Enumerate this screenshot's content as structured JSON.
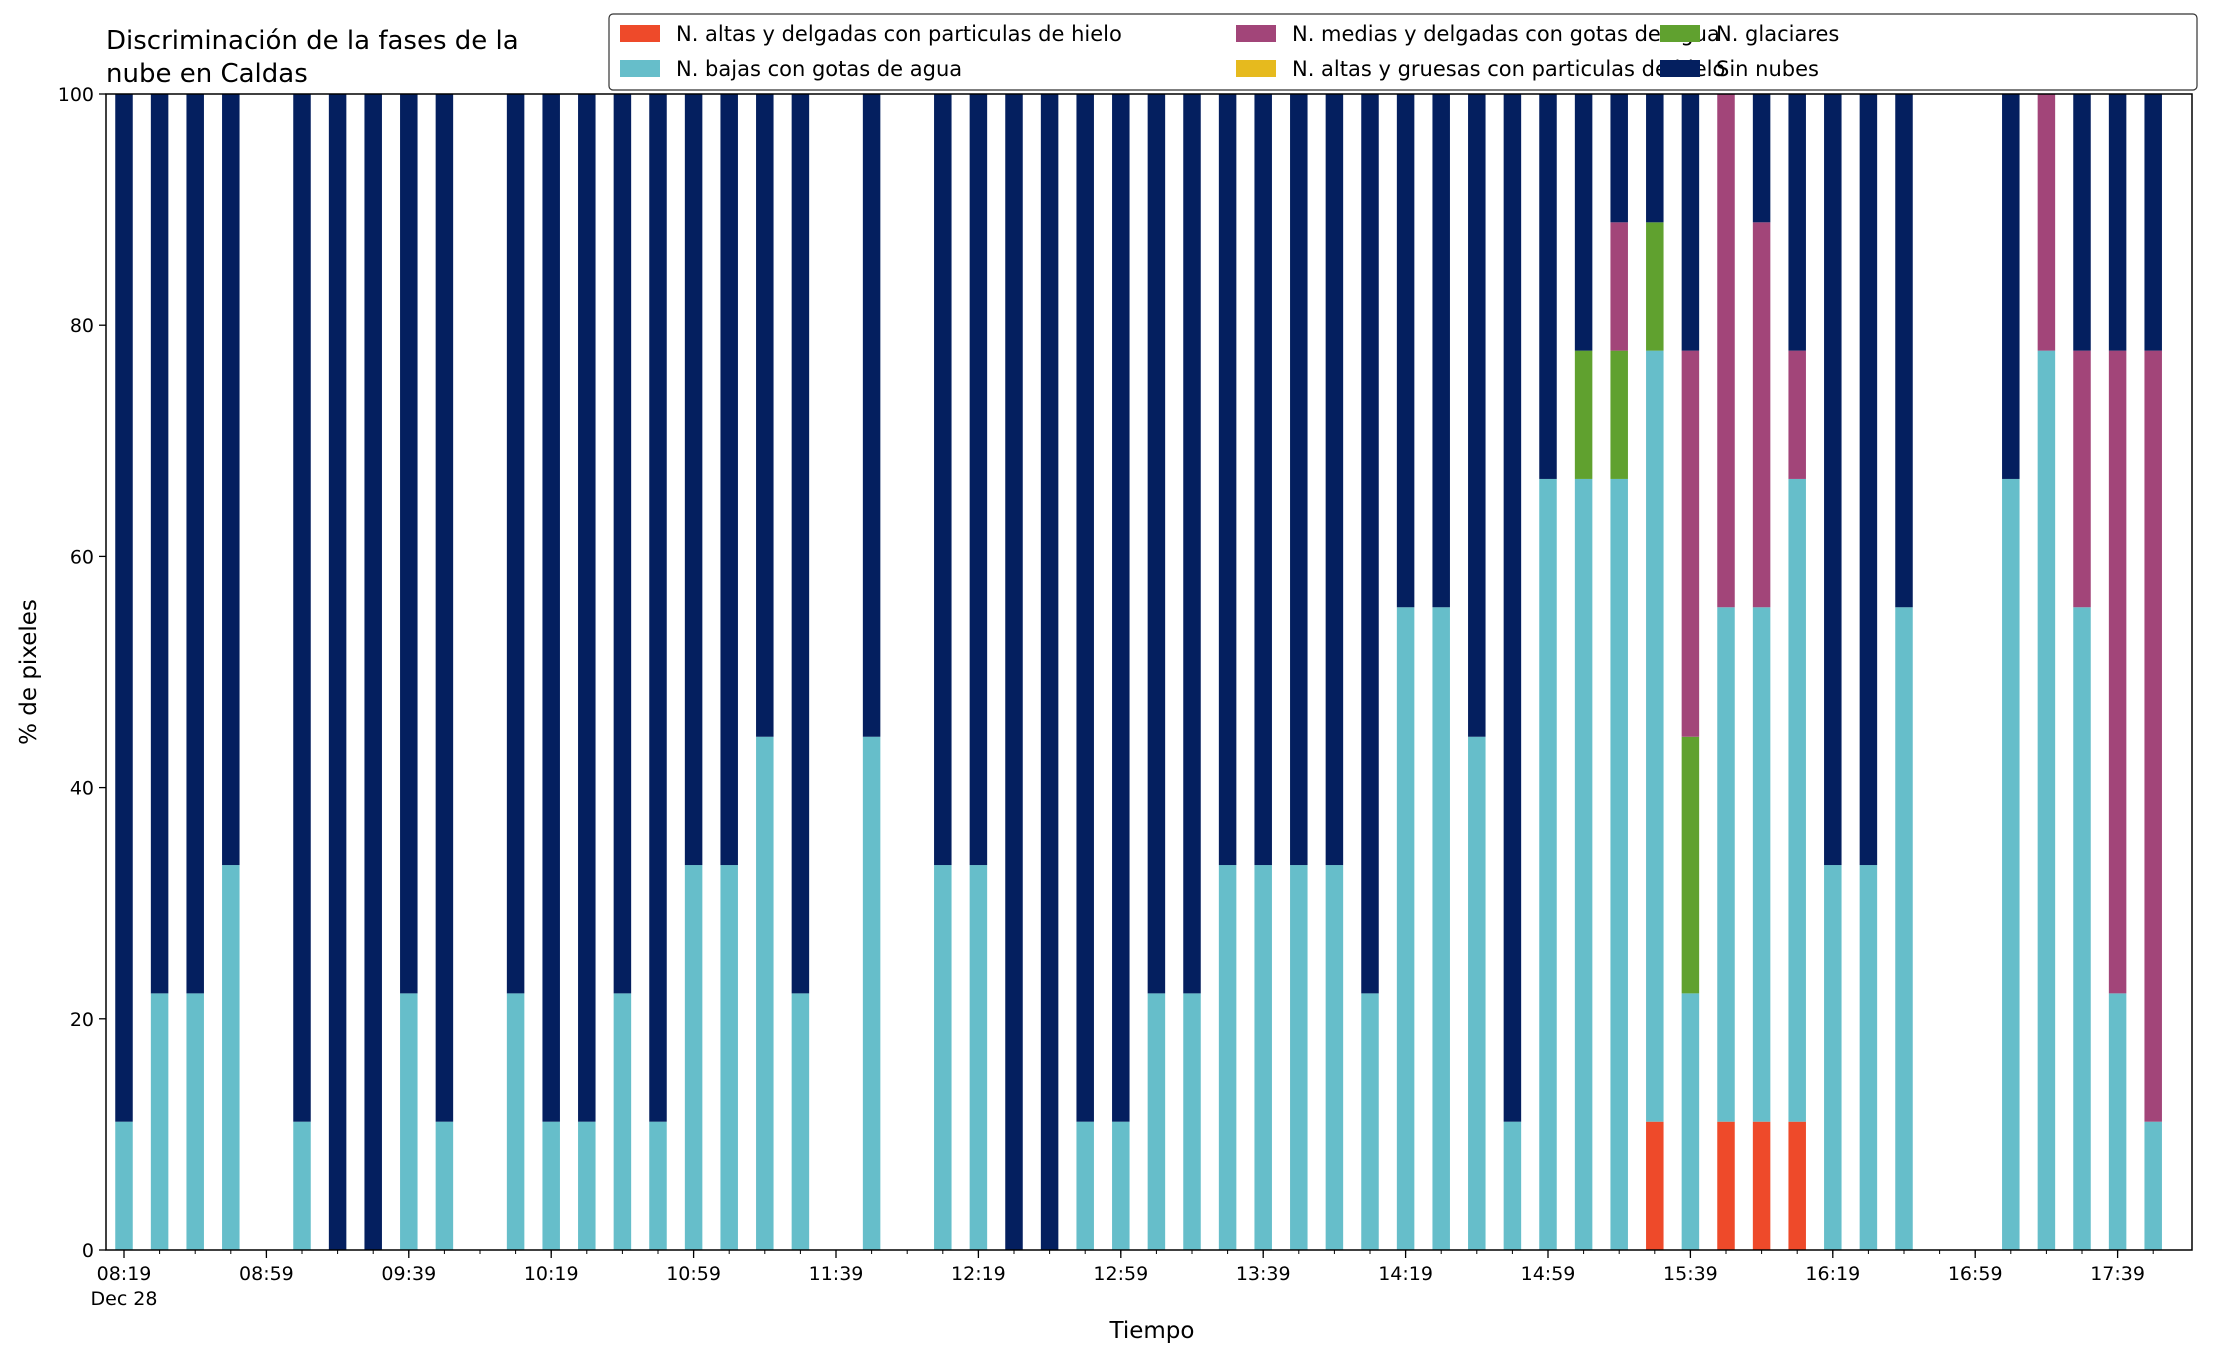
{
  "chart_data": {
    "type": "bar",
    "stacked": true,
    "title": "Discriminación de la fases de la\nnube en Caldas",
    "xlabel": "Tiempo",
    "ylabel": "% de pixeles",
    "ylim": [
      0,
      100
    ],
    "yticks": [
      "0",
      "20",
      "40",
      "60",
      "80",
      "100"
    ],
    "xticks": [
      "08:19",
      "08:59",
      "09:39",
      "10:19",
      "10:59",
      "11:39",
      "12:19",
      "12:59",
      "13:39",
      "14:19",
      "14:59",
      "15:39",
      "16:19",
      "16:59",
      "17:39"
    ],
    "xdate": "Dec 28",
    "legend_position": "top-right",
    "legend": [
      {
        "name": "N. altas y delgadas con particulas de hielo",
        "color": "#EE4A2A"
      },
      {
        "name": "N. bajas con gotas de agua",
        "color": "#66BECA"
      },
      {
        "name": "N. medias y delgadas con gotas de agua",
        "color": "#A24579"
      },
      {
        "name": "N. altas y gruesas con particulas de hielo",
        "color": "#E6BA1E"
      },
      {
        "name": "N. glaciares",
        "color": "#60A12F"
      },
      {
        "name": "Sin nubes",
        "color": "#041F5F"
      }
    ],
    "categories": [
      "08:19",
      "08:29",
      "08:39",
      "08:49",
      "08:59",
      "09:09",
      "09:19",
      "09:29",
      "09:39",
      "09:49",
      "09:59",
      "10:09",
      "10:19",
      "10:29",
      "10:39",
      "10:49",
      "10:59",
      "11:09",
      "11:19",
      "11:29",
      "11:39",
      "11:49",
      "11:59",
      "12:09",
      "12:19",
      "12:29",
      "12:39",
      "12:49",
      "12:59",
      "13:09",
      "13:19",
      "13:29",
      "13:39",
      "13:49",
      "13:59",
      "14:09",
      "14:19",
      "14:29",
      "14:39",
      "14:49",
      "14:59",
      "15:09",
      "15:19",
      "15:29",
      "15:39",
      "15:49",
      "15:59",
      "16:09",
      "16:19",
      "16:29",
      "16:39",
      "16:49",
      "16:59",
      "17:09",
      "17:19",
      "17:29",
      "17:39",
      "17:49"
    ],
    "series": [
      {
        "name": "N. altas y delgadas con particulas de hielo",
        "color": "#EE4A2A",
        "values": [
          0,
          0,
          0,
          0,
          null,
          0,
          0,
          0,
          0,
          0,
          null,
          0,
          0,
          0,
          0,
          0,
          0,
          0,
          0,
          0,
          null,
          0,
          0,
          0,
          0,
          0,
          0,
          0,
          0,
          0,
          0,
          0,
          0,
          0,
          0,
          0,
          0,
          0,
          0,
          0,
          0,
          0,
          0,
          11.1,
          0,
          11.1,
          11.1,
          11.1,
          0,
          0,
          0,
          null,
          null,
          0,
          0,
          0,
          0,
          0
        ]
      },
      {
        "name": "N. bajas con gotas de agua",
        "color": "#66BECA",
        "values": [
          11.1,
          22.2,
          22.2,
          33.3,
          null,
          11.1,
          0,
          0,
          22.2,
          11.1,
          null,
          22.2,
          11.1,
          11.1,
          22.2,
          11.1,
          33.3,
          33.3,
          44.4,
          22.2,
          null,
          44.4,
          null,
          33.3,
          33.3,
          0,
          0,
          11.1,
          11.1,
          22.2,
          22.2,
          33.3,
          33.3,
          33.3,
          33.3,
          22.2,
          55.6,
          55.6,
          44.4,
          11.1,
          66.7,
          66.7,
          66.7,
          66.7,
          22.2,
          44.5,
          44.5,
          55.6,
          33.3,
          33.3,
          55.6,
          null,
          null,
          66.7,
          77.8,
          55.6,
          22.2,
          11.1
        ]
      },
      {
        "name": "N. glaciares",
        "color": "#60A12F",
        "values": [
          0,
          0,
          0,
          0,
          null,
          0,
          0,
          0,
          0,
          0,
          null,
          0,
          0,
          0,
          0,
          0,
          0,
          0,
          0,
          0,
          null,
          0,
          null,
          0,
          0,
          0,
          0,
          0,
          0,
          0,
          0,
          0,
          0,
          0,
          0,
          0,
          0,
          0,
          0,
          0,
          0,
          11.1,
          11.1,
          11.1,
          22.2,
          0,
          0,
          0,
          0,
          0,
          0,
          null,
          null,
          0,
          0,
          0,
          0,
          0
        ]
      },
      {
        "name": "N. medias y delgadas con gotas de agua",
        "color": "#A24579",
        "values": [
          0,
          0,
          0,
          0,
          null,
          0,
          0,
          0,
          0,
          0,
          null,
          0,
          0,
          0,
          0,
          0,
          0,
          0,
          0,
          0,
          null,
          0,
          null,
          0,
          0,
          0,
          0,
          0,
          0,
          0,
          0,
          0,
          0,
          0,
          0,
          0,
          0,
          0,
          0,
          0,
          0,
          0,
          11.1,
          0,
          33.4,
          44.4,
          33.3,
          11.1,
          0,
          0,
          0,
          null,
          null,
          0,
          22.2,
          22.2,
          55.6,
          66.7
        ]
      },
      {
        "name": "Sin nubes",
        "color": "#041F5F",
        "values": [
          88.9,
          77.8,
          77.8,
          66.7,
          null,
          88.9,
          100,
          100,
          77.8,
          88.9,
          null,
          77.8,
          88.9,
          88.9,
          77.8,
          88.9,
          66.7,
          66.7,
          55.6,
          77.8,
          null,
          55.6,
          null,
          66.7,
          66.7,
          100,
          100,
          88.9,
          88.9,
          77.8,
          77.8,
          66.7,
          66.7,
          66.7,
          66.7,
          77.8,
          44.4,
          44.4,
          55.6,
          88.9,
          33.3,
          22.2,
          11.1,
          11.1,
          22.2,
          0,
          11.1,
          22.2,
          66.7,
          66.7,
          44.4,
          null,
          null,
          33.3,
          0,
          22.2,
          22.2,
          22.2
        ]
      }
    ]
  }
}
